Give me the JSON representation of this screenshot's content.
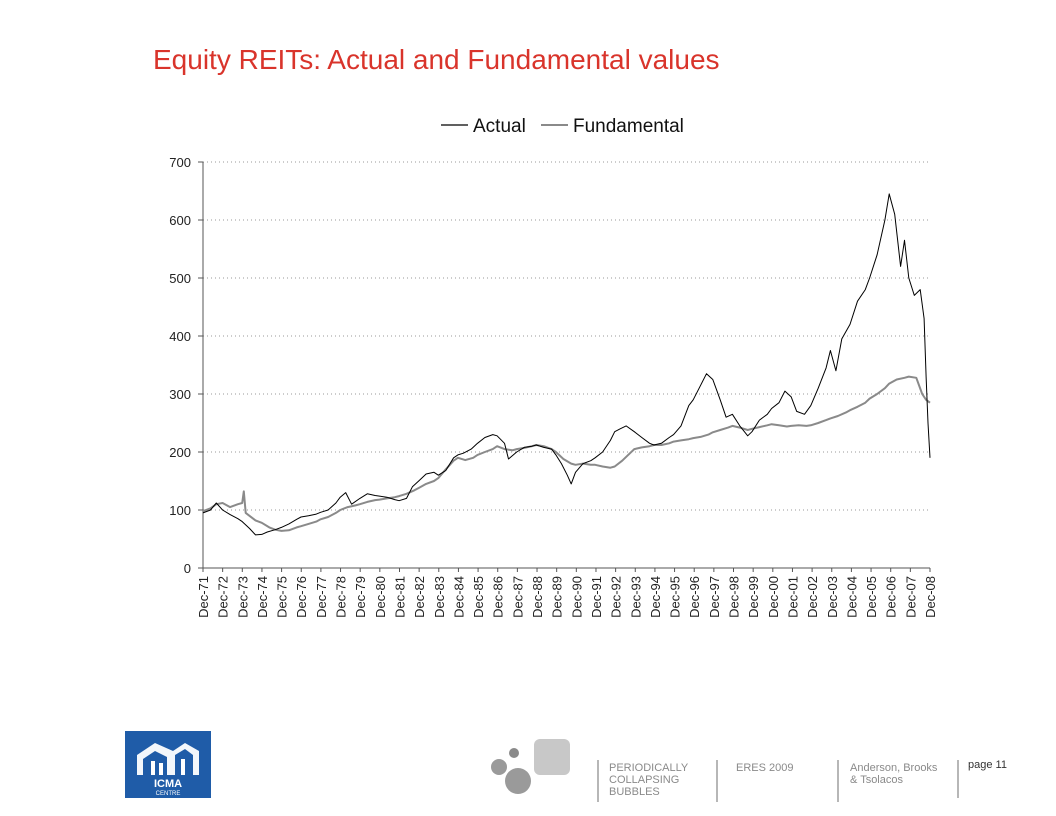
{
  "slide": {
    "title": "Equity REITs: Actual and Fundamental values"
  },
  "chart_data": {
    "type": "line",
    "title": "",
    "xlabel": "",
    "ylabel": "",
    "ylim": [
      0,
      700
    ],
    "yticks": [
      "0",
      "100",
      "200",
      "300",
      "400",
      "500",
      "600",
      "700"
    ],
    "x_categories": [
      "Dec-71",
      "Dec-72",
      "Dec-73",
      "Dec-74",
      "Dec-75",
      "Dec-76",
      "Dec-77",
      "Dec-78",
      "Dec-79",
      "Dec-80",
      "Dec-81",
      "Dec-82",
      "Dec-83",
      "Dec-84",
      "Dec-85",
      "Dec-86",
      "Dec-87",
      "Dec-88",
      "Dec-89",
      "Dec-90",
      "Dec-91",
      "Dec-92",
      "Dec-93",
      "Dec-94",
      "Dec-95",
      "Dec-96",
      "Dec-97",
      "Dec-98",
      "Dec-99",
      "Dec-00",
      "Dec-01",
      "Dec-02",
      "Dec-03",
      "Dec-04",
      "Dec-05",
      "Dec-06",
      "Dec-07",
      "Dec-08"
    ],
    "grid": "horizontal dotted",
    "legend_position": "top",
    "series": [
      {
        "name": "Actual",
        "color": "#000000",
        "points": [
          [
            1971.92,
            95
          ],
          [
            1972.3,
            100
          ],
          [
            1972.6,
            112
          ],
          [
            1972.92,
            100
          ],
          [
            1973.3,
            92
          ],
          [
            1973.7,
            85
          ],
          [
            1973.92,
            80
          ],
          [
            1974.3,
            68
          ],
          [
            1974.6,
            57
          ],
          [
            1974.92,
            58
          ],
          [
            1975.2,
            62
          ],
          [
            1975.6,
            66
          ],
          [
            1975.92,
            70
          ],
          [
            1976.3,
            76
          ],
          [
            1976.7,
            84
          ],
          [
            1976.92,
            88
          ],
          [
            1977.3,
            90
          ],
          [
            1977.7,
            93
          ],
          [
            1977.92,
            96
          ],
          [
            1978.3,
            100
          ],
          [
            1978.7,
            112
          ],
          [
            1978.92,
            122
          ],
          [
            1979.2,
            130
          ],
          [
            1979.5,
            110
          ],
          [
            1979.92,
            120
          ],
          [
            1980.3,
            128
          ],
          [
            1980.7,
            125
          ],
          [
            1980.92,
            124
          ],
          [
            1981.3,
            122
          ],
          [
            1981.7,
            118
          ],
          [
            1981.92,
            116
          ],
          [
            1982.3,
            120
          ],
          [
            1982.6,
            140
          ],
          [
            1982.92,
            150
          ],
          [
            1983.3,
            162
          ],
          [
            1983.7,
            165
          ],
          [
            1983.92,
            160
          ],
          [
            1984.3,
            168
          ],
          [
            1984.7,
            190
          ],
          [
            1984.92,
            195
          ],
          [
            1985.2,
            198
          ],
          [
            1985.6,
            205
          ],
          [
            1985.92,
            215
          ],
          [
            1986.3,
            225
          ],
          [
            1986.7,
            230
          ],
          [
            1986.92,
            228
          ],
          [
            1987.3,
            215
          ],
          [
            1987.5,
            188
          ],
          [
            1987.92,
            200
          ],
          [
            1988.3,
            208
          ],
          [
            1988.7,
            210
          ],
          [
            1988.92,
            212
          ],
          [
            1989.3,
            208
          ],
          [
            1989.7,
            205
          ],
          [
            1989.92,
            195
          ],
          [
            1990.2,
            180
          ],
          [
            1990.5,
            160
          ],
          [
            1990.7,
            145
          ],
          [
            1990.92,
            165
          ],
          [
            1991.3,
            180
          ],
          [
            1991.7,
            185
          ],
          [
            1991.92,
            190
          ],
          [
            1992.3,
            200
          ],
          [
            1992.7,
            220
          ],
          [
            1992.92,
            235
          ],
          [
            1993.2,
            240
          ],
          [
            1993.5,
            245
          ],
          [
            1993.92,
            235
          ],
          [
            1994.3,
            225
          ],
          [
            1994.7,
            215
          ],
          [
            1994.92,
            212
          ],
          [
            1995.3,
            215
          ],
          [
            1995.7,
            225
          ],
          [
            1995.92,
            230
          ],
          [
            1996.3,
            245
          ],
          [
            1996.7,
            280
          ],
          [
            1996.92,
            290
          ],
          [
            1997.3,
            315
          ],
          [
            1997.6,
            335
          ],
          [
            1997.92,
            325
          ],
          [
            1998.3,
            290
          ],
          [
            1998.6,
            260
          ],
          [
            1998.92,
            265
          ],
          [
            1999.3,
            245
          ],
          [
            1999.7,
            228
          ],
          [
            1999.92,
            235
          ],
          [
            2000.3,
            255
          ],
          [
            2000.7,
            265
          ],
          [
            2000.92,
            275
          ],
          [
            2001.3,
            285
          ],
          [
            2001.6,
            305
          ],
          [
            2001.92,
            295
          ],
          [
            2002.2,
            270
          ],
          [
            2002.6,
            265
          ],
          [
            2002.92,
            280
          ],
          [
            2003.3,
            310
          ],
          [
            2003.7,
            345
          ],
          [
            2003.92,
            375
          ],
          [
            2004.2,
            340
          ],
          [
            2004.5,
            395
          ],
          [
            2004.92,
            420
          ],
          [
            2005.3,
            460
          ],
          [
            2005.7,
            480
          ],
          [
            2005.92,
            500
          ],
          [
            2006.3,
            540
          ],
          [
            2006.7,
            600
          ],
          [
            2006.92,
            645
          ],
          [
            2007.2,
            610
          ],
          [
            2007.5,
            520
          ],
          [
            2007.7,
            565
          ],
          [
            2007.92,
            500
          ],
          [
            2008.2,
            470
          ],
          [
            2008.5,
            480
          ],
          [
            2008.7,
            430
          ],
          [
            2008.8,
            330
          ],
          [
            2008.9,
            250
          ],
          [
            2009.0,
            190
          ]
        ]
      },
      {
        "name": "Fundamental",
        "color": "#8a8a8a",
        "points": [
          [
            1971.92,
            98
          ],
          [
            1972.3,
            103
          ],
          [
            1972.6,
            110
          ],
          [
            1972.92,
            112
          ],
          [
            1973.3,
            105
          ],
          [
            1973.7,
            110
          ],
          [
            1973.92,
            112
          ],
          [
            1974.0,
            132
          ],
          [
            1974.1,
            95
          ],
          [
            1974.6,
            82
          ],
          [
            1974.92,
            78
          ],
          [
            1975.3,
            70
          ],
          [
            1975.6,
            66
          ],
          [
            1975.92,
            64
          ],
          [
            1976.3,
            65
          ],
          [
            1976.7,
            70
          ],
          [
            1976.92,
            72
          ],
          [
            1977.3,
            76
          ],
          [
            1977.7,
            80
          ],
          [
            1977.92,
            84
          ],
          [
            1978.3,
            88
          ],
          [
            1978.7,
            95
          ],
          [
            1978.92,
            100
          ],
          [
            1979.3,
            105
          ],
          [
            1979.7,
            108
          ],
          [
            1979.92,
            110
          ],
          [
            1980.3,
            114
          ],
          [
            1980.7,
            117
          ],
          [
            1980.92,
            118
          ],
          [
            1981.3,
            120
          ],
          [
            1981.7,
            122
          ],
          [
            1981.92,
            124
          ],
          [
            1982.3,
            128
          ],
          [
            1982.7,
            134
          ],
          [
            1982.92,
            138
          ],
          [
            1983.3,
            145
          ],
          [
            1983.7,
            150
          ],
          [
            1983.92,
            155
          ],
          [
            1984.3,
            170
          ],
          [
            1984.7,
            185
          ],
          [
            1984.92,
            190
          ],
          [
            1985.3,
            186
          ],
          [
            1985.7,
            190
          ],
          [
            1985.92,
            195
          ],
          [
            1986.3,
            200
          ],
          [
            1986.7,
            205
          ],
          [
            1986.92,
            210
          ],
          [
            1987.3,
            205
          ],
          [
            1987.7,
            203
          ],
          [
            1987.92,
            205
          ],
          [
            1988.3,
            207
          ],
          [
            1988.7,
            210
          ],
          [
            1988.92,
            212
          ],
          [
            1989.3,
            210
          ],
          [
            1989.7,
            205
          ],
          [
            1989.92,
            200
          ],
          [
            1990.3,
            188
          ],
          [
            1990.7,
            180
          ],
          [
            1990.92,
            178
          ],
          [
            1991.3,
            180
          ],
          [
            1991.7,
            178
          ],
          [
            1991.92,
            178
          ],
          [
            1992.3,
            175
          ],
          [
            1992.7,
            173
          ],
          [
            1992.92,
            175
          ],
          [
            1993.3,
            185
          ],
          [
            1993.7,
            198
          ],
          [
            1993.92,
            205
          ],
          [
            1994.3,
            208
          ],
          [
            1994.7,
            210
          ],
          [
            1994.92,
            212
          ],
          [
            1995.3,
            212
          ],
          [
            1995.7,
            215
          ],
          [
            1995.92,
            218
          ],
          [
            1996.3,
            220
          ],
          [
            1996.7,
            222
          ],
          [
            1996.92,
            224
          ],
          [
            1997.3,
            226
          ],
          [
            1997.7,
            230
          ],
          [
            1997.92,
            234
          ],
          [
            1998.3,
            238
          ],
          [
            1998.7,
            242
          ],
          [
            1998.92,
            245
          ],
          [
            1999.3,
            242
          ],
          [
            1999.7,
            238
          ],
          [
            1999.92,
            240
          ],
          [
            2000.3,
            243
          ],
          [
            2000.7,
            246
          ],
          [
            2000.92,
            248
          ],
          [
            2001.3,
            246
          ],
          [
            2001.7,
            244
          ],
          [
            2001.92,
            245
          ],
          [
            2002.3,
            246
          ],
          [
            2002.7,
            245
          ],
          [
            2002.92,
            246
          ],
          [
            2003.3,
            250
          ],
          [
            2003.7,
            255
          ],
          [
            2003.92,
            258
          ],
          [
            2004.3,
            262
          ],
          [
            2004.7,
            268
          ],
          [
            2004.92,
            272
          ],
          [
            2005.3,
            278
          ],
          [
            2005.7,
            285
          ],
          [
            2005.92,
            292
          ],
          [
            2006.3,
            300
          ],
          [
            2006.7,
            310
          ],
          [
            2006.92,
            318
          ],
          [
            2007.3,
            325
          ],
          [
            2007.7,
            328
          ],
          [
            2007.92,
            330
          ],
          [
            2008.3,
            328
          ],
          [
            2008.6,
            300
          ],
          [
            2008.8,
            290
          ],
          [
            2009.0,
            285
          ]
        ]
      }
    ]
  },
  "footer": {
    "col1": [
      "PERIODICALLY",
      "COLLAPSING",
      "BUBBLES"
    ],
    "col2": "ERES 2009",
    "col3": [
      "Anderson, Brooks",
      "& Tsolacos"
    ],
    "page": "page 11",
    "logo_text": [
      "ICMA",
      "CENTRE"
    ],
    "logo_color": "#1f5ca8"
  }
}
